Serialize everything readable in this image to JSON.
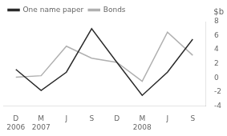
{
  "chart_data": {
    "type": "line",
    "categories": [
      "D",
      "M",
      "J",
      "S",
      "D",
      "M",
      "J",
      "S"
    ],
    "series": [
      {
        "name": "One name paper",
        "color": "#2a2a2a",
        "values": [
          1.2,
          -1.8,
          0.8,
          7.0,
          2.2,
          -2.5,
          0.8,
          5.5
        ]
      },
      {
        "name": "Bonds",
        "color": "#b0b0b0",
        "values": [
          0.1,
          0.3,
          4.5,
          2.8,
          2.2,
          -0.5,
          6.5,
          3.2
        ]
      }
    ],
    "annotations": [
      {
        "text": "2006",
        "x": 0
      },
      {
        "text": "2007",
        "x": 1
      },
      {
        "text": "2008",
        "x": 5
      }
    ],
    "y_label": "$b",
    "ylim": [
      -4,
      8
    ],
    "yticks": [
      -4,
      -2,
      0,
      2,
      4,
      6,
      8
    ],
    "grid": false,
    "legend": "upper left"
  }
}
